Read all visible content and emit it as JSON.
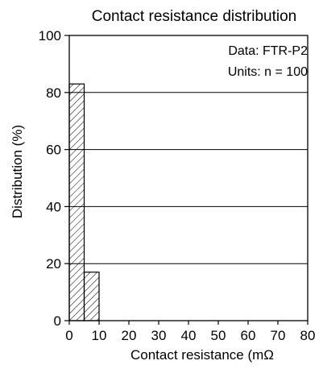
{
  "chart_data": {
    "type": "bar",
    "title": "Contact resistance distribution",
    "xlabel": "Contact resistance (mΩ",
    "ylabel": "Distribution (%)",
    "xlim": [
      0,
      80
    ],
    "ylim": [
      0,
      100
    ],
    "x_ticks": [
      "0",
      "10",
      "20",
      "30",
      "40",
      "50",
      "60",
      "70",
      "80"
    ],
    "y_ticks": [
      "0",
      "20",
      "40",
      "60",
      "80",
      "100"
    ],
    "grid": "horizontal",
    "bins": [
      {
        "from": 0,
        "to": 5,
        "value": 83
      },
      {
        "from": 5,
        "to": 10,
        "value": 17
      }
    ],
    "annotations": [
      "Data: FTR-P2",
      "Units: n = 100"
    ],
    "bar_fill": "hatched",
    "colors": {
      "line": "#000000",
      "background": "#ffffff"
    }
  }
}
